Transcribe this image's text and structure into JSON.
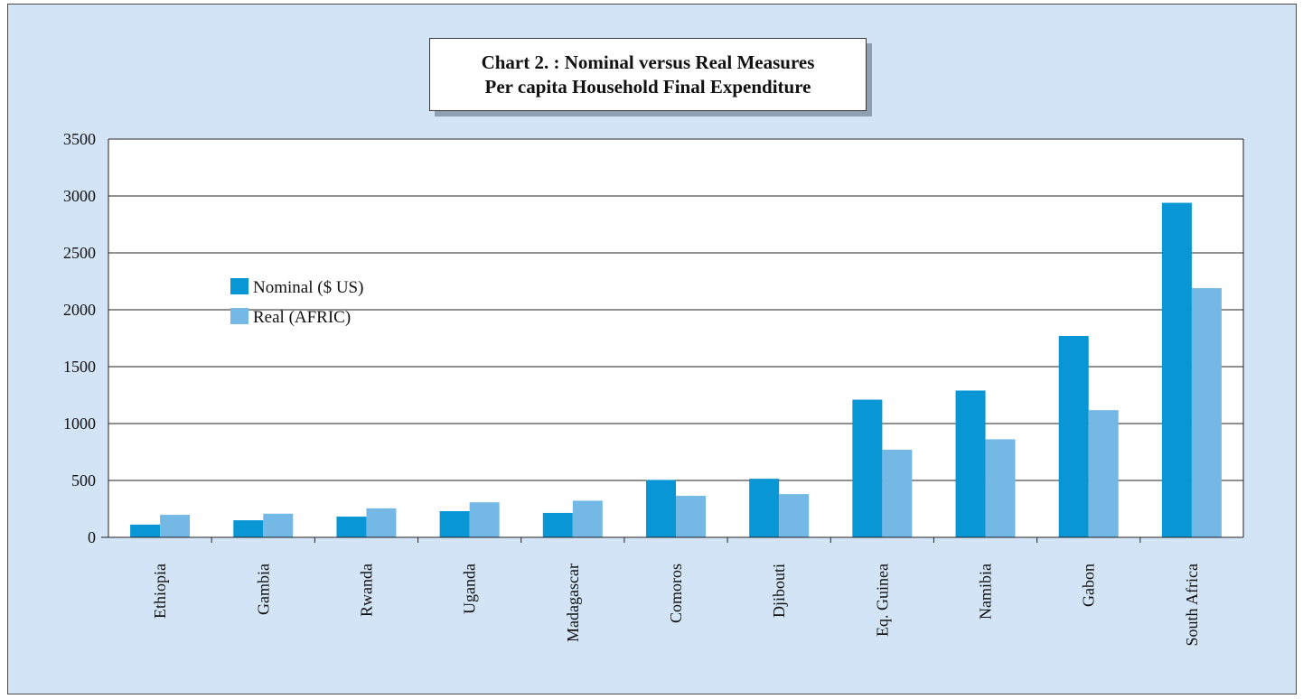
{
  "chart_data": {
    "type": "bar",
    "title_line1": "Chart 2. : Nominal versus Real Measures",
    "title_line2": "Per capita Household Final Expenditure",
    "categories": [
      "Ethiopia",
      "Gambia",
      "Rwanda",
      "Uganda",
      "Madagascar",
      "Comoros",
      "Djibouti",
      "Eq. Guinea",
      "Namibia",
      "Gabon",
      "South Africa"
    ],
    "series": [
      {
        "name": "Nominal ($ US)",
        "color": "#0996d4",
        "values": [
          112,
          150,
          182,
          230,
          215,
          505,
          515,
          1210,
          1290,
          1770,
          2940
        ]
      },
      {
        "name": "Real (AFRIC)",
        "color": "#74b9e6",
        "values": [
          198,
          208,
          255,
          308,
          322,
          365,
          380,
          770,
          862,
          1118,
          2190
        ]
      }
    ],
    "ylim": [
      0,
      3500
    ],
    "yticks": [
      0,
      500,
      1000,
      1500,
      2000,
      2500,
      3000,
      3500
    ],
    "grid": true,
    "legend_position": "left"
  }
}
